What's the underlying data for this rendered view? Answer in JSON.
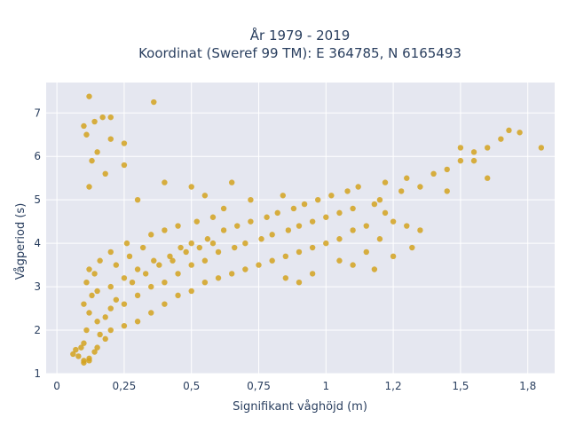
{
  "chart_data": {
    "type": "scatter",
    "title": "År 1979 - 2019",
    "subtitle": "Koordinat (Sweref 99 TM): E 364785, N 6165493",
    "xlabel": "Signifikant våghöjd (m)",
    "ylabel": "Vågperiod (s)",
    "xlim": [
      -0.04,
      1.85
    ],
    "ylim": [
      1.0,
      7.7
    ],
    "x_ticks": [
      0,
      0.25,
      0.5,
      0.75,
      1.0,
      1.25,
      1.5,
      1.75
    ],
    "x_tick_labels": [
      "0",
      "0,25",
      "0,5",
      "0,75",
      "1",
      "1,2",
      "1,5",
      "1,8"
    ],
    "y_ticks": [
      1,
      2,
      3,
      4,
      5,
      6,
      7
    ],
    "y_tick_labels": [
      "1",
      "2",
      "3",
      "4",
      "5",
      "6",
      "7"
    ],
    "grid": true,
    "colors": {
      "marker": "#D4A21E",
      "plot_bg": "#E5E7F0",
      "grid": "#FFFFFF",
      "text": "#2A3F5F"
    },
    "series": [
      {
        "marker_color": "#D4A21E",
        "points": [
          [
            0.06,
            1.45
          ],
          [
            0.07,
            1.55
          ],
          [
            0.08,
            1.4
          ],
          [
            0.09,
            1.6
          ],
          [
            0.1,
            1.3
          ],
          [
            0.1,
            1.7
          ],
          [
            0.12,
            1.35
          ],
          [
            0.11,
            2.0
          ],
          [
            0.12,
            2.4
          ],
          [
            0.13,
            2.8
          ],
          [
            0.11,
            3.1
          ],
          [
            0.12,
            3.4
          ],
          [
            0.1,
            2.6
          ],
          [
            0.15,
            1.6
          ],
          [
            0.15,
            2.2
          ],
          [
            0.15,
            2.9
          ],
          [
            0.14,
            3.3
          ],
          [
            0.16,
            3.6
          ],
          [
            0.18,
            1.8
          ],
          [
            0.2,
            2.0
          ],
          [
            0.2,
            2.5
          ],
          [
            0.2,
            3.0
          ],
          [
            0.22,
            3.5
          ],
          [
            0.2,
            3.8
          ],
          [
            0.25,
            2.1
          ],
          [
            0.25,
            2.6
          ],
          [
            0.25,
            3.2
          ],
          [
            0.27,
            3.7
          ],
          [
            0.26,
            4.0
          ],
          [
            0.3,
            2.2
          ],
          [
            0.3,
            2.8
          ],
          [
            0.3,
            3.4
          ],
          [
            0.32,
            3.9
          ],
          [
            0.35,
            2.4
          ],
          [
            0.35,
            3.0
          ],
          [
            0.36,
            3.6
          ],
          [
            0.35,
            4.2
          ],
          [
            0.4,
            2.6
          ],
          [
            0.4,
            3.1
          ],
          [
            0.42,
            3.7
          ],
          [
            0.4,
            4.3
          ],
          [
            0.45,
            2.8
          ],
          [
            0.45,
            3.3
          ],
          [
            0.46,
            3.9
          ],
          [
            0.45,
            4.4
          ],
          [
            0.5,
            2.9
          ],
          [
            0.5,
            3.5
          ],
          [
            0.5,
            4.0
          ],
          [
            0.52,
            4.5
          ],
          [
            0.55,
            3.1
          ],
          [
            0.55,
            3.6
          ],
          [
            0.56,
            4.1
          ],
          [
            0.58,
            4.6
          ],
          [
            0.6,
            3.2
          ],
          [
            0.6,
            3.8
          ],
          [
            0.62,
            4.3
          ],
          [
            0.62,
            4.8
          ],
          [
            0.65,
            3.3
          ],
          [
            0.66,
            3.9
          ],
          [
            0.67,
            4.4
          ],
          [
            0.7,
            3.4
          ],
          [
            0.7,
            4.0
          ],
          [
            0.72,
            4.5
          ],
          [
            0.72,
            5.0
          ],
          [
            0.75,
            3.5
          ],
          [
            0.76,
            4.1
          ],
          [
            0.78,
            4.6
          ],
          [
            0.8,
            3.6
          ],
          [
            0.8,
            4.2
          ],
          [
            0.82,
            4.7
          ],
          [
            0.84,
            5.1
          ],
          [
            0.85,
            3.7
          ],
          [
            0.86,
            4.3
          ],
          [
            0.88,
            4.8
          ],
          [
            0.9,
            3.8
          ],
          [
            0.9,
            4.4
          ],
          [
            0.92,
            4.9
          ],
          [
            0.95,
            3.9
          ],
          [
            0.95,
            4.5
          ],
          [
            0.97,
            5.0
          ],
          [
            1.0,
            4.0
          ],
          [
            1.0,
            4.6
          ],
          [
            1.02,
            5.1
          ],
          [
            1.05,
            4.1
          ],
          [
            1.05,
            4.7
          ],
          [
            1.08,
            5.2
          ],
          [
            1.1,
            4.3
          ],
          [
            1.1,
            4.8
          ],
          [
            1.12,
            5.3
          ],
          [
            1.15,
            4.4
          ],
          [
            1.18,
            4.9
          ],
          [
            1.2,
            5.0
          ],
          [
            1.22,
            5.4
          ],
          [
            1.25,
            4.5
          ],
          [
            1.28,
            5.2
          ],
          [
            1.3,
            5.5
          ],
          [
            1.35,
            5.3
          ],
          [
            1.4,
            5.6
          ],
          [
            1.45,
            5.7
          ],
          [
            1.5,
            5.9
          ],
          [
            1.55,
            6.1
          ],
          [
            1.6,
            6.2
          ],
          [
            1.65,
            6.4
          ],
          [
            0.11,
            6.5
          ],
          [
            0.1,
            6.7
          ],
          [
            0.14,
            6.8
          ],
          [
            0.17,
            6.9
          ],
          [
            0.2,
            6.9
          ],
          [
            0.13,
            5.9
          ],
          [
            0.15,
            6.1
          ],
          [
            0.12,
            5.3
          ],
          [
            0.18,
            5.6
          ],
          [
            0.25,
            5.8
          ],
          [
            0.3,
            5.0
          ],
          [
            0.12,
            7.38
          ],
          [
            0.36,
            7.25
          ],
          [
            0.25,
            6.3
          ],
          [
            0.2,
            6.4
          ],
          [
            0.4,
            5.4
          ],
          [
            0.5,
            5.3
          ],
          [
            0.55,
            5.1
          ],
          [
            0.65,
            5.4
          ],
          [
            1.8,
            6.2
          ],
          [
            1.72,
            6.55
          ],
          [
            1.68,
            6.6
          ],
          [
            1.5,
            6.2
          ],
          [
            1.55,
            5.9
          ],
          [
            1.6,
            5.5
          ],
          [
            1.45,
            5.2
          ],
          [
            1.3,
            4.4
          ],
          [
            1.2,
            4.1
          ],
          [
            1.25,
            3.7
          ],
          [
            1.18,
            3.4
          ],
          [
            1.1,
            3.5
          ],
          [
            0.95,
            3.3
          ],
          [
            0.9,
            3.1
          ],
          [
            0.85,
            3.2
          ],
          [
            1.05,
            3.6
          ],
          [
            1.15,
            3.8
          ],
          [
            1.35,
            4.3
          ],
          [
            1.32,
            3.9
          ],
          [
            1.22,
            4.7
          ],
          [
            0.1,
            1.25
          ],
          [
            0.12,
            1.3
          ],
          [
            0.14,
            1.5
          ],
          [
            0.16,
            1.9
          ],
          [
            0.18,
            2.3
          ],
          [
            0.22,
            2.7
          ],
          [
            0.28,
            3.1
          ],
          [
            0.33,
            3.3
          ],
          [
            0.38,
            3.5
          ],
          [
            0.43,
            3.6
          ],
          [
            0.48,
            3.8
          ],
          [
            0.53,
            3.9
          ],
          [
            0.58,
            4.0
          ]
        ]
      }
    ]
  }
}
